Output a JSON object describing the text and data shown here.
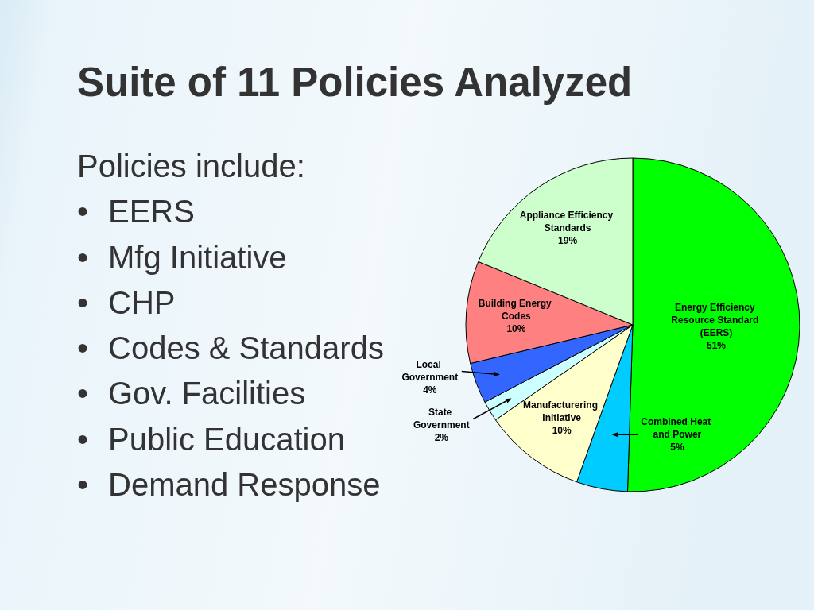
{
  "chart_data": {
    "type": "pie",
    "title": "Suite of 11 Policies Analyzed",
    "annotations": [
      "Policies include:",
      "•\tEERS",
      "•\tMfg Initiative",
      "•\tCHP",
      "•\tCodes & Standards",
      "•\tGov. Facilities",
      "•\tPublic Education",
      "•\tDemand Response"
    ],
    "categories": [
      "Energy Efficiency Resource Standard (EERS)",
      "Combined Heat and Power",
      "Manufacturering Initiative",
      "State Government",
      "Local Government",
      "Building Energy Codes",
      "Appliance Efficiency Standards"
    ],
    "values": [
      51,
      5,
      10,
      2,
      4,
      10,
      19
    ],
    "value_labels": [
      "51%",
      "5%",
      "10%",
      "2%",
      "4%",
      "10%",
      "19%"
    ],
    "colors": [
      "#00ff00",
      "#00ccff",
      "#ffffcc",
      "#ccffff",
      "#3366ff",
      "#ff8080",
      "#ccffcc"
    ]
  }
}
